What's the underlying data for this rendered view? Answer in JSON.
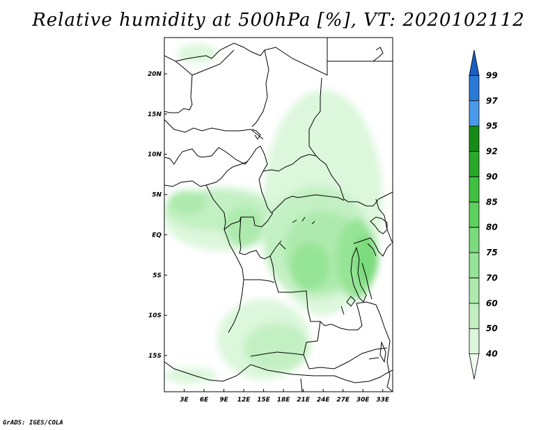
{
  "title": "Relative humidity at 500hPa [%], VT: 2020102112",
  "credit": "GrADS: IGES/COLA",
  "map": {
    "lon_range": [
      0,
      34.5
    ],
    "lat_range": [
      -19.5,
      24.5
    ],
    "lon_ticks": [
      {
        "value": 3,
        "label": "3E"
      },
      {
        "value": 6,
        "label": "6E"
      },
      {
        "value": 9,
        "label": "9E"
      },
      {
        "value": 12,
        "label": "12E"
      },
      {
        "value": 15,
        "label": "15E"
      },
      {
        "value": 18,
        "label": "18E"
      },
      {
        "value": 21,
        "label": "21E"
      },
      {
        "value": 24,
        "label": "24E"
      },
      {
        "value": 27,
        "label": "27E"
      },
      {
        "value": 30,
        "label": "30E"
      },
      {
        "value": 33,
        "label": "33E"
      }
    ],
    "lat_ticks": [
      {
        "value": 20,
        "label": "20N"
      },
      {
        "value": 15,
        "label": "15N"
      },
      {
        "value": 10,
        "label": "10N"
      },
      {
        "value": 5,
        "label": "5N"
      },
      {
        "value": 0,
        "label": "EQ"
      },
      {
        "value": -5,
        "label": "5S"
      },
      {
        "value": -10,
        "label": "10S"
      },
      {
        "value": -15,
        "label": "15S"
      }
    ]
  },
  "colorbar": {
    "levels": [
      "40",
      "50",
      "60",
      "70",
      "75",
      "80",
      "85",
      "90",
      "92",
      "95",
      "97",
      "99"
    ],
    "colors": [
      "#f0fcf0",
      "#dcf7dc",
      "#c3f0c3",
      "#aeeaae",
      "#96e496",
      "#7cdb7c",
      "#5ed05e",
      "#42c042",
      "#2aa82a",
      "#168c16",
      "#4a9aea",
      "#2a7ad8",
      "#1a5ec4"
    ]
  },
  "humidity_regions": [
    {
      "level": "40",
      "lon": 24,
      "lat": 4,
      "rx": 9,
      "ry": 14
    },
    {
      "level": "40",
      "lon": 9,
      "lat": 2,
      "rx": 9,
      "ry": 4
    },
    {
      "level": "40",
      "lon": 15,
      "lat": -13,
      "rx": 7,
      "ry": 5
    },
    {
      "level": "40",
      "lon": 4,
      "lat": -17.5,
      "rx": 4,
      "ry": 1
    },
    {
      "level": "40",
      "lon": 5,
      "lat": 22.5,
      "rx": 3,
      "ry": 1.2
    },
    {
      "level": "50",
      "lon": 23,
      "lat": -1,
      "rx": 8,
      "ry": 7
    },
    {
      "level": "50",
      "lon": 8,
      "lat": 3,
      "rx": 8,
      "ry": 2.5
    },
    {
      "level": "50",
      "lon": 17,
      "lat": -14,
      "rx": 5,
      "ry": 3
    },
    {
      "level": "60",
      "lon": 24,
      "lat": -2,
      "rx": 6,
      "ry": 5
    },
    {
      "level": "60",
      "lon": 3.5,
      "lat": 4,
      "rx": 3,
      "ry": 1.5
    },
    {
      "level": "60",
      "lon": 12,
      "lat": 1,
      "rx": 3,
      "ry": 2.5
    },
    {
      "level": "70",
      "lon": 29,
      "lat": -3,
      "rx": 3,
      "ry": 5
    },
    {
      "level": "70",
      "lon": 22,
      "lat": -4,
      "rx": 3,
      "ry": 3
    },
    {
      "level": "75",
      "lon": 30.5,
      "lat": -3,
      "rx": 1.8,
      "ry": 3
    }
  ]
}
